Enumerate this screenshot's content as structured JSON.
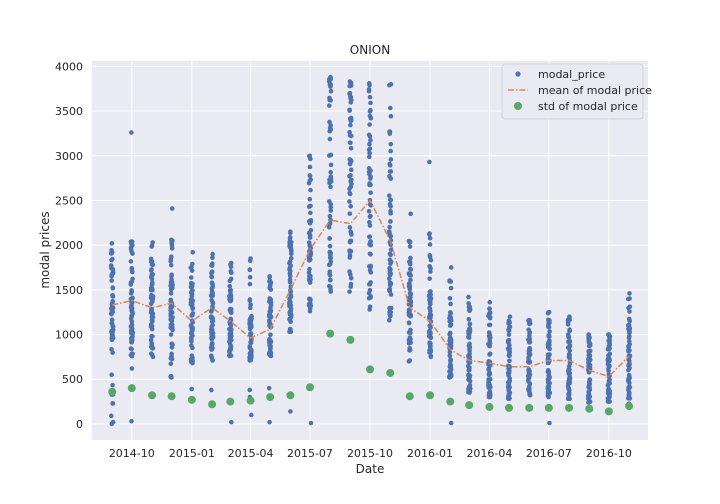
{
  "chart_data": {
    "type": "scatter",
    "title": "ONION",
    "xlabel": "Date",
    "ylabel": "modal prices",
    "x_tick_labels": [
      "2014-10",
      "2015-01",
      "2015-04",
      "2015-07",
      "2015-10",
      "2016-01",
      "2016-04",
      "2016-07",
      "2016-10"
    ],
    "x_ticks": [
      "2014-10-01",
      "2015-01-01",
      "2015-04-01",
      "2015-07-01",
      "2015-10-01",
      "2016-01-01",
      "2016-04-01",
      "2016-07-01",
      "2016-10-01"
    ],
    "y_ticks": [
      0,
      500,
      1000,
      1500,
      2000,
      2500,
      3000,
      3500,
      4000
    ],
    "xlim": [
      "2014-08-01",
      "2016-11-30"
    ],
    "ylim": [
      -180,
      4060
    ],
    "grid": true,
    "legend_position": "top-right",
    "colors": {
      "points": "#4c72b0",
      "mean": "#dd8452",
      "std": "#55a868",
      "background": "#eaeaf2",
      "grid": "#ffffff"
    },
    "series": [
      {
        "name": "modal_price",
        "kind": "scatter",
        "columns": [
          {
            "date": "2014-09-01",
            "min": 20,
            "max": 2020,
            "dense_low": 900,
            "dense_high": 1700,
            "outliers": [
              0
            ]
          },
          {
            "date": "2014-10-01",
            "min": 620,
            "max": 2040,
            "dense_low": 950,
            "dense_high": 1800,
            "outliers": [
              3260,
              30
            ]
          },
          {
            "date": "2014-11-01",
            "min": 750,
            "max": 2030,
            "dense_low": 1000,
            "dense_high": 1700,
            "outliers": []
          },
          {
            "date": "2014-12-01",
            "min": 520,
            "max": 2060,
            "dense_low": 1000,
            "dense_high": 1750,
            "outliers": [
              2410
            ]
          },
          {
            "date": "2015-01-01",
            "min": 680,
            "max": 1920,
            "dense_low": 850,
            "dense_high": 1500,
            "outliers": [
              390
            ]
          },
          {
            "date": "2015-02-01",
            "min": 710,
            "max": 1900,
            "dense_low": 900,
            "dense_high": 1600,
            "outliers": [
              380
            ]
          },
          {
            "date": "2015-03-01",
            "min": 760,
            "max": 1800,
            "dense_low": 850,
            "dense_high": 1450,
            "outliers": [
              20
            ]
          },
          {
            "date": "2015-04-01",
            "min": 710,
            "max": 1850,
            "dense_low": 750,
            "dense_high": 1200,
            "outliers": [
              380,
              300,
              100
            ]
          },
          {
            "date": "2015-05-01",
            "min": 760,
            "max": 1650,
            "dense_low": 800,
            "dense_high": 1400,
            "outliers": [
              400,
              20
            ]
          },
          {
            "date": "2015-06-01",
            "min": 1030,
            "max": 2150,
            "dense_low": 1200,
            "dense_high": 2000,
            "outliers": [
              320,
              140
            ]
          },
          {
            "date": "2015-07-01",
            "min": 1260,
            "max": 3000,
            "dense_low": 1500,
            "dense_high": 2450,
            "outliers": [
              10
            ]
          },
          {
            "date": "2015-08-01",
            "min": 1480,
            "max": 3880,
            "dense_low": 1800,
            "dense_high": 3700,
            "outliers": []
          },
          {
            "date": "2015-09-01",
            "min": 1480,
            "max": 3830,
            "dense_low": 2000,
            "dense_high": 3600,
            "outliers": []
          },
          {
            "date": "2015-10-01",
            "min": 1280,
            "max": 3810,
            "dense_low": 1700,
            "dense_high": 3300,
            "outliers": []
          },
          {
            "date": "2015-11-01",
            "min": 1160,
            "max": 3800,
            "dense_low": 1500,
            "dense_high": 2900,
            "outliers": []
          },
          {
            "date": "2015-12-01",
            "min": 700,
            "max": 2350,
            "dense_low": 950,
            "dense_high": 1700,
            "outliers": []
          },
          {
            "date": "2016-01-01",
            "min": 750,
            "max": 2130,
            "dense_low": 900,
            "dense_high": 1500,
            "outliers": [
              2930
            ]
          },
          {
            "date": "2016-02-01",
            "min": 520,
            "max": 1750,
            "dense_low": 550,
            "dense_high": 1200,
            "outliers": [
              10
            ]
          },
          {
            "date": "2016-03-01",
            "min": 350,
            "max": 1420,
            "dense_low": 420,
            "dense_high": 1100,
            "outliers": []
          },
          {
            "date": "2016-04-01",
            "min": 300,
            "max": 1360,
            "dense_low": 400,
            "dense_high": 1000,
            "outliers": []
          },
          {
            "date": "2016-05-01",
            "min": 280,
            "max": 1200,
            "dense_low": 380,
            "dense_high": 1000,
            "outliers": []
          },
          {
            "date": "2016-06-01",
            "min": 320,
            "max": 1160,
            "dense_low": 400,
            "dense_high": 1000,
            "outliers": []
          },
          {
            "date": "2016-07-01",
            "min": 300,
            "max": 1250,
            "dense_low": 400,
            "dense_high": 1050,
            "outliers": [
              10
            ]
          },
          {
            "date": "2016-08-01",
            "min": 280,
            "max": 1200,
            "dense_low": 380,
            "dense_high": 1000,
            "outliers": []
          },
          {
            "date": "2016-09-01",
            "min": 240,
            "max": 1000,
            "dense_low": 320,
            "dense_high": 850,
            "outliers": []
          },
          {
            "date": "2016-10-01",
            "min": 250,
            "max": 1000,
            "dense_low": 320,
            "dense_high": 850,
            "outliers": []
          },
          {
            "date": "2016-11-01",
            "min": 200,
            "max": 1460,
            "dense_low": 350,
            "dense_high": 1100,
            "outliers": []
          }
        ]
      },
      {
        "name": "mean of modal price",
        "kind": "line",
        "x": [
          "2014-09-01",
          "2014-10-01",
          "2014-11-01",
          "2014-12-01",
          "2015-01-01",
          "2015-02-01",
          "2015-03-01",
          "2015-04-01",
          "2015-05-01",
          "2015-06-01",
          "2015-07-01",
          "2015-08-01",
          "2015-09-01",
          "2015-10-01",
          "2015-11-01",
          "2015-12-01",
          "2016-01-01",
          "2016-02-01",
          "2016-03-01",
          "2016-04-01",
          "2016-05-01",
          "2016-06-01",
          "2016-07-01",
          "2016-08-01",
          "2016-09-01",
          "2016-10-01",
          "2016-11-01"
        ],
        "values": [
          1330,
          1380,
          1300,
          1350,
          1150,
          1300,
          1150,
          960,
          1060,
          1500,
          1950,
          2280,
          2240,
          2500,
          2050,
          1300,
          1150,
          830,
          710,
          680,
          640,
          640,
          710,
          710,
          600,
          530,
          760
        ]
      },
      {
        "name": "std of modal price",
        "kind": "scatter",
        "x": [
          "2014-09-01",
          "2014-10-01",
          "2014-11-01",
          "2014-12-01",
          "2015-01-01",
          "2015-02-01",
          "2015-03-01",
          "2015-04-01",
          "2015-05-01",
          "2015-06-01",
          "2015-07-01",
          "2015-08-01",
          "2015-09-01",
          "2015-10-01",
          "2015-11-01",
          "2015-12-01",
          "2016-01-01",
          "2016-02-01",
          "2016-03-01",
          "2016-04-01",
          "2016-05-01",
          "2016-06-01",
          "2016-07-01",
          "2016-08-01",
          "2016-09-01",
          "2016-10-01",
          "2016-11-01"
        ],
        "values": [
          360,
          400,
          320,
          310,
          270,
          220,
          250,
          260,
          300,
          320,
          410,
          1010,
          940,
          610,
          570,
          310,
          320,
          250,
          210,
          190,
          180,
          180,
          180,
          180,
          170,
          140,
          200
        ]
      }
    ]
  }
}
